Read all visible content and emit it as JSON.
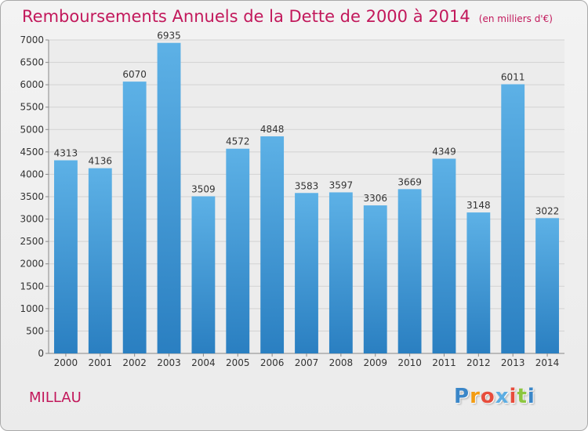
{
  "header": {
    "title": "Remboursements Annuels de la Dette de 2000 à 2014",
    "unit": "(en milliers d'€)"
  },
  "footer": {
    "city": "MILLAU",
    "logo_text": "Proxiti"
  },
  "colors": {
    "title": "#c2185b",
    "bar_light": "#5dade2",
    "bar_dark": "#2a7fc1",
    "logo": [
      "#3a86c8",
      "#f39c12",
      "#e74c3c",
      "#5dade2",
      "#e74c3c",
      "#8cc63f",
      "#3a86c8"
    ]
  },
  "chart_data": {
    "type": "bar",
    "title": "Remboursements Annuels de la Dette de 2000 à 2014",
    "subtitle": "(en milliers d'€)",
    "xlabel": "",
    "ylabel": "",
    "ylim": [
      0,
      7000
    ],
    "yticks": [
      0,
      500,
      1000,
      1500,
      2000,
      2500,
      3000,
      3500,
      4000,
      4500,
      5000,
      5500,
      6000,
      6500,
      7000
    ],
    "grid": true,
    "categories": [
      "2000",
      "2001",
      "2002",
      "2003",
      "2004",
      "2005",
      "2006",
      "2007",
      "2008",
      "2009",
      "2010",
      "2011",
      "2012",
      "2013",
      "2014"
    ],
    "values": [
      4313,
      4136,
      6070,
      6935,
      3509,
      4572,
      4848,
      3583,
      3597,
      3306,
      3669,
      4349,
      3148,
      6011,
      3022
    ]
  }
}
